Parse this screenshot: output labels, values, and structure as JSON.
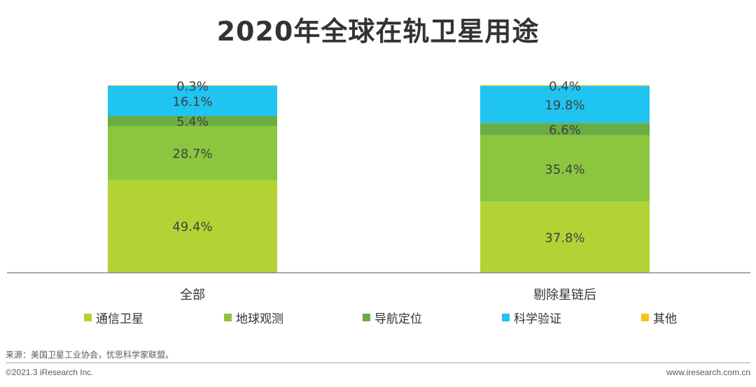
{
  "chart_data": {
    "type": "bar",
    "stacked": true,
    "title": "2020年全球在轨卫星用途",
    "categories": [
      "全部",
      "剔除星链后"
    ],
    "unit": "%",
    "ylim": [
      0,
      100
    ],
    "series": [
      {
        "name": "通信卫星",
        "color": "#b3d335",
        "values": [
          49.4,
          37.8
        ],
        "labels": [
          "49.4%",
          "37.8%"
        ]
      },
      {
        "name": "地球观测",
        "color": "#8cc63f",
        "values": [
          28.7,
          35.4
        ],
        "labels": [
          "28.7%",
          "35.4%"
        ]
      },
      {
        "name": "导航定位",
        "color": "#6aad43",
        "values": [
          5.4,
          6.6
        ],
        "labels": [
          "5.4%",
          "6.6%"
        ]
      },
      {
        "name": "科学验证",
        "color": "#1fc4f1",
        "values": [
          16.1,
          19.8
        ],
        "labels": [
          "16.1%",
          "19.8%"
        ]
      },
      {
        "name": "其他",
        "color": "#f5c518",
        "values": [
          0.3,
          0.4
        ],
        "labels": [
          "0.3%",
          "0.4%"
        ]
      }
    ],
    "legend_position": "bottom",
    "grid": false
  },
  "footer": {
    "source": "来源：美国卫星工业协会，忧思科学家联盟。",
    "copyright": "©2021.3 iResearch Inc.",
    "website": "www.iresearch.com.cn"
  }
}
